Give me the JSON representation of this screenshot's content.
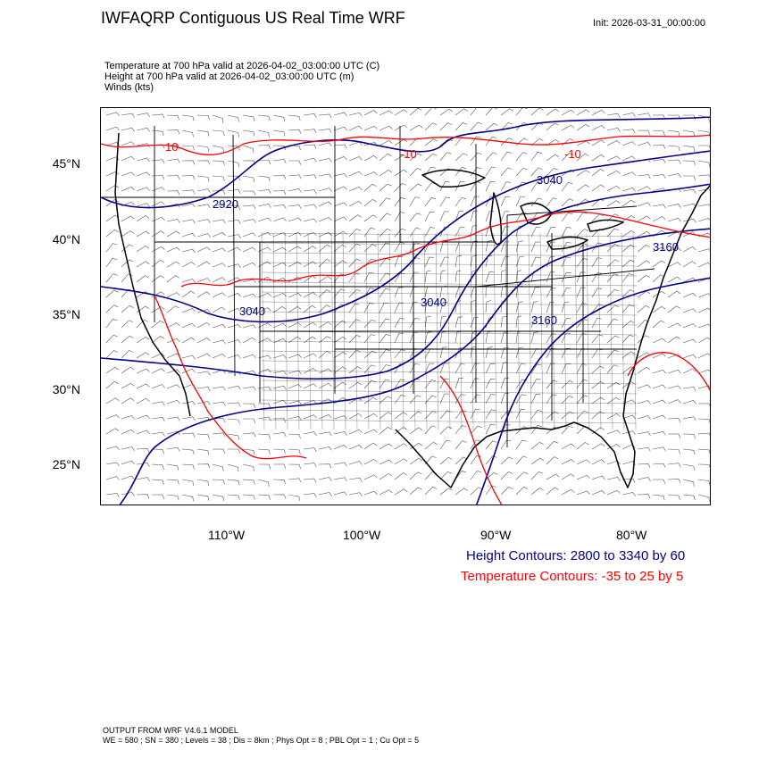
{
  "header": {
    "title": "IWFAQRP Contiguous US Real Time WRF",
    "init": "Init: 2026-03-31_00:00:00"
  },
  "subtitles": [
    "Temperature at 700 hPa valid at 2026-04-02_03:00:00 UTC   (C)",
    "Height at 700 hPa valid at 2026-04-02_03:00:00 UTC   (m)",
    "Winds   (kts)"
  ],
  "map": {
    "lat_labels": [
      "45°N",
      "40°N",
      "35°N",
      "30°N",
      "25°N"
    ],
    "lon_labels": [
      "110°W",
      "100°W",
      "90°W",
      "80°W"
    ],
    "height_contour_labels": [
      "2920",
      "3040",
      "3040",
      "3040",
      "3160",
      "3160"
    ],
    "temp_contour_labels": [
      "10",
      "-10",
      "-10"
    ],
    "colors": {
      "height_contours": "#00008b",
      "temperature_contours": "#ff0000",
      "borders": "#000000",
      "wind_barbs": "#555555"
    }
  },
  "legend": {
    "height": "Height Contours: 2800 to 3340 by 60",
    "temperature": "Temperature Contours: -35 to 25 by 5"
  },
  "footer": {
    "line1": "OUTPUT FROM WRF V4.6.1 MODEL",
    "line2": "WE = 580 ; SN = 380 ; Levels = 38 ; Dis = 8km ; Phys Opt = 8 ; PBL Opt = 1 ; Cu Opt = 5"
  }
}
